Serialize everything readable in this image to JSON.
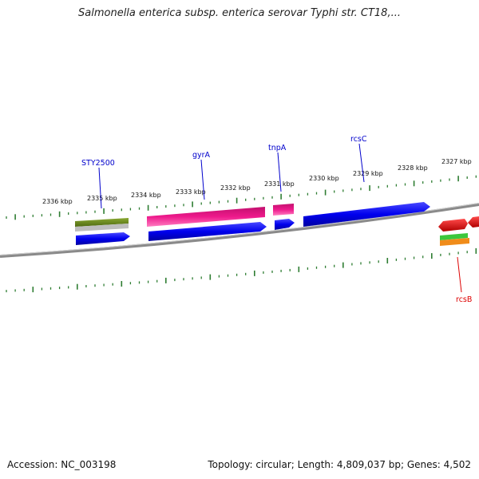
{
  "title": "Salmonella enterica subsp. enterica serovar Typhi str. CT18,...",
  "footer": {
    "accession": "Accession: NC_003198",
    "summary": "Topology: circular; Length: 4,809,037 bp; Genes: 4,502"
  },
  "colors": {
    "backbone": "#888888",
    "ticks": "#2e7d32",
    "cds_blue": "#0000ee",
    "gene_pink": "#ee1a8c",
    "rna_red": "#ee1111",
    "olive": "#6b8e23",
    "label_blue": "#0000cc",
    "label_red": "#dd0000"
  },
  "tick_labels": [
    "2336 kbp",
    "2335 kbp",
    "2334 kbp",
    "2333 kbp",
    "2332 kbp",
    "2331 kbp",
    "2330 kbp",
    "2329 kbp",
    "2328 kbp",
    "2327 kbp"
  ],
  "gene_labels": {
    "sty2500": "STY2500",
    "gyra": "gyrA",
    "tnpa": "tnpA",
    "rcsc": "rcsC",
    "rcsb": "rcsB"
  }
}
